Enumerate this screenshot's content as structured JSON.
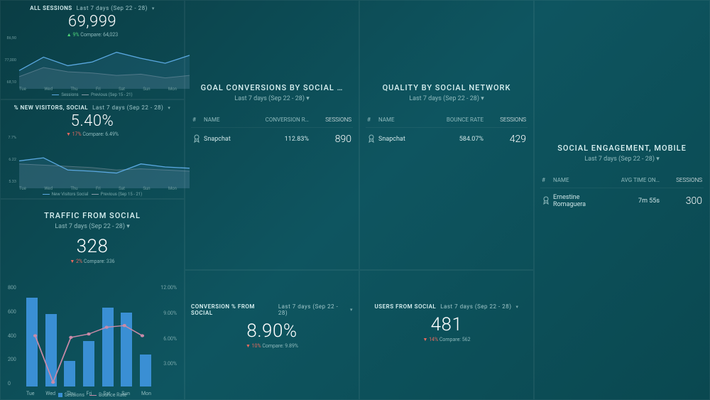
{
  "colors": {
    "line_primary": "#5aa8e0",
    "line_secondary": "#8a9ba8",
    "bar": "#3a8fd4",
    "bounce_line": "#c98aa8",
    "grid": "#2a5a62",
    "up": "#4fd67a",
    "down": "#e86a5f"
  },
  "mini1": {
    "title": "ALL SESSIONS",
    "period": "Last 7 days (Sep 22 - 28)",
    "value": "69,999",
    "delta_dir": "up",
    "delta": "9%",
    "compare": "Compare: 64,023",
    "y_labels": [
      "86,90",
      "77,000",
      "68,10"
    ],
    "x_labels": [
      "Tue",
      "Wed",
      "Thu",
      "Fri",
      "Sat",
      "Sun",
      "Mon"
    ],
    "series1": [
      30,
      52,
      38,
      44,
      60,
      50,
      42,
      55
    ],
    "series2": [
      20,
      35,
      28,
      26,
      22,
      24,
      18,
      22
    ],
    "legend1": "Sessions",
    "legend2": "Previous (Sep 15 - 21)"
  },
  "mini2": {
    "title": "% NEW VISITORS, SOCIAL",
    "period": "Last 7 days (Sep 22 - 28)",
    "value": "5.40%",
    "delta_dir": "down",
    "delta": "17%",
    "compare": "Compare: 6.49%",
    "y_labels": [
      "7.7%",
      "6.22",
      "5.33"
    ],
    "x_labels": [
      "Tue",
      "Wed",
      "Thu",
      "Fri",
      "Sat",
      "Sun",
      "Mon"
    ],
    "series1": [
      45,
      50,
      30,
      28,
      25,
      40,
      35,
      33
    ],
    "series2": [
      40,
      38,
      36,
      34,
      30,
      32,
      30,
      28
    ],
    "legend1": "New Visitors Social",
    "legend2": "Previous (Sep 15 - 21)"
  },
  "traffic": {
    "title": "TRAFFIC FROM SOCIAL",
    "period": "Last 7 days (Sep 22 - 28)",
    "value": "328",
    "delta_dir": "down",
    "delta": "2%",
    "compare": "Compare: 336",
    "y_left": [
      "800",
      "600",
      "400",
      "200",
      "0"
    ],
    "y_right": [
      "12.00%",
      "9.00%",
      "6.00%",
      "3.00%",
      ""
    ],
    "x_labels": [
      "Tue",
      "Wed",
      "Thu",
      "Fri",
      "Sat",
      "Sun",
      "Mon"
    ],
    "bars": [
      700,
      570,
      200,
      360,
      620,
      580,
      250
    ],
    "bounce": [
      6.0,
      0.5,
      5.8,
      6.2,
      7.0,
      7.2,
      6.0
    ],
    "bounce_max": 12,
    "bar_max": 800,
    "legend_sessions": "Sessions",
    "legend_bounce": "Bounce Rate"
  },
  "goal": {
    "title": "GOAL CONVERSIONS BY SOCIAL …",
    "period": "Last 7 days (Sep 22 - 28)",
    "cols": [
      "#",
      "NAME",
      "CONVERSION R…",
      "SESSIONS"
    ],
    "row": {
      "name": "Snapchat",
      "a": "112.83%",
      "b": "890"
    }
  },
  "quality": {
    "title": "QUALITY BY SOCIAL NETWORK",
    "period": "Last 7 days (Sep 22 - 28)",
    "cols": [
      "#",
      "NAME",
      "BOUNCE RATE",
      "SESSIONS"
    ],
    "row": {
      "name": "Snapchat",
      "a": "584.07%",
      "b": "429"
    }
  },
  "engagement": {
    "title": "SOCIAL ENGAGEMENT, MOBILE",
    "period": "Last 7 days (Sep 22 - 28)",
    "cols": [
      "#",
      "NAME",
      "AVG TIME ON…",
      "SESSIONS"
    ],
    "row": {
      "name": "Ernestine Romaguera",
      "a": "7m 55s",
      "b": "300"
    }
  },
  "conv": {
    "title": "CONVERSION % FROM SOCIAL",
    "period": "Last 7 days (Sep 22 - 28)",
    "value": "8.90%",
    "delta_dir": "down",
    "delta": "10%",
    "compare": "Compare: 9.89%"
  },
  "users": {
    "title": "USERS FROM SOCIAL",
    "period": "Last 7 days (Sep 22 - 28)",
    "value": "481",
    "delta_dir": "down",
    "delta": "14%",
    "compare": "Compare: 562"
  }
}
